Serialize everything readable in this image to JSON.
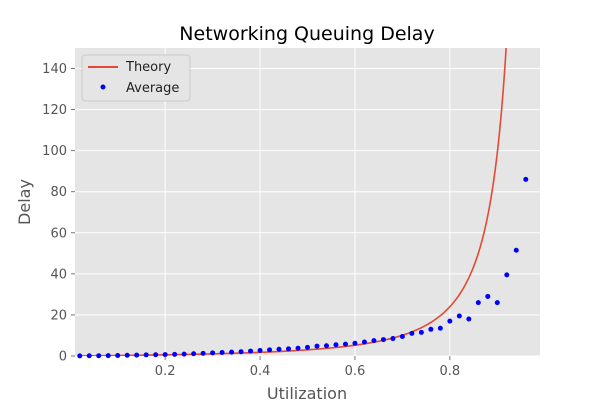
{
  "chart_data": {
    "type": "line",
    "title": "Networking Queuing Delay",
    "xlabel": "Utilization",
    "ylabel": "Delay",
    "xlim": [
      0.01,
      0.99
    ],
    "ylim": [
      0,
      150
    ],
    "xticks": [
      0.2,
      0.4,
      0.6,
      0.8
    ],
    "yticks": [
      0,
      20,
      40,
      60,
      80,
      100,
      120,
      140
    ],
    "grid": true,
    "legend_position": "top-left",
    "theory": {
      "name": "Theory",
      "color": "#e24a33",
      "formula": "1/(1-x)^2 - 1",
      "x_min": 0.02,
      "x_max": 0.99
    },
    "average": {
      "name": "Average",
      "color": "#0000ff",
      "x": [
        0.02,
        0.04,
        0.06,
        0.08,
        0.1,
        0.12,
        0.14,
        0.16,
        0.18,
        0.2,
        0.22,
        0.24,
        0.26,
        0.28,
        0.3,
        0.32,
        0.34,
        0.36,
        0.38,
        0.4,
        0.42,
        0.44,
        0.46,
        0.48,
        0.5,
        0.52,
        0.54,
        0.56,
        0.58,
        0.6,
        0.62,
        0.64,
        0.66,
        0.68,
        0.7,
        0.72,
        0.74,
        0.76,
        0.78,
        0.8,
        0.82,
        0.84,
        0.86,
        0.88,
        0.9,
        0.92,
        0.94,
        0.96
      ],
      "y": [
        0.04,
        0.1,
        0.15,
        0.2,
        0.25,
        0.35,
        0.45,
        0.55,
        0.6,
        0.7,
        0.8,
        0.9,
        1.1,
        1.3,
        1.5,
        1.7,
        1.9,
        2.1,
        2.4,
        2.7,
        3.0,
        3.3,
        3.5,
        3.8,
        4.2,
        4.8,
        5.0,
        5.5,
        5.8,
        6.2,
        6.8,
        7.5,
        8.0,
        8.5,
        9.5,
        11.0,
        11.5,
        13.0,
        13.5,
        17.0,
        19.5,
        18.0,
        26.0,
        29.0,
        26.0,
        39.5,
        51.5,
        86.0
      ]
    }
  }
}
